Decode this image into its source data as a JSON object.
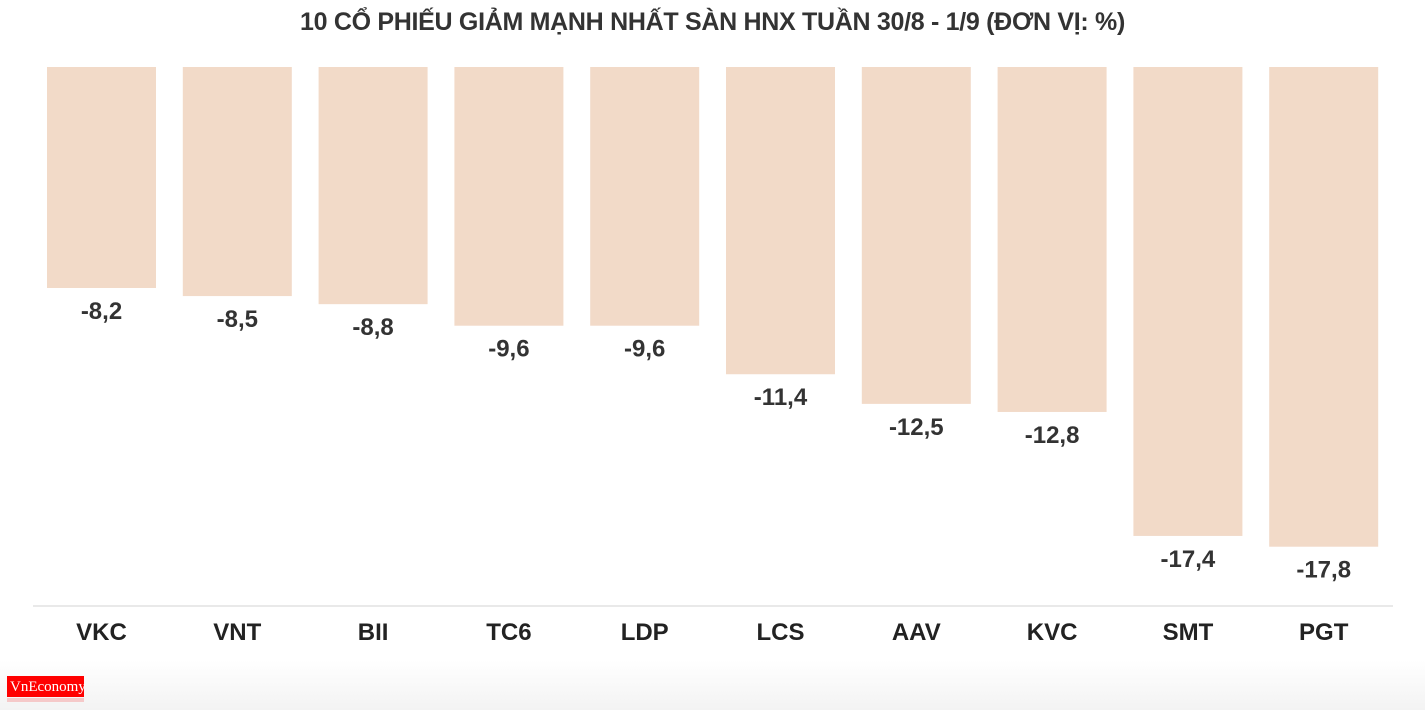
{
  "chart_data": {
    "type": "bar",
    "title": "10 CỔ PHIẾU GIẢM MẠNH NHẤT SÀN HNX TUẦN 30/8 - 1/9 (ĐƠN VỊ: %)",
    "categories": [
      "VKC",
      "VNT",
      "BII",
      "TC6",
      "LDP",
      "LCS",
      "AAV",
      "KVC",
      "SMT",
      "PGT"
    ],
    "values": [
      -8.2,
      -8.5,
      -8.8,
      -9.6,
      -9.6,
      -11.4,
      -12.5,
      -12.8,
      -17.4,
      -17.8
    ],
    "value_labels": [
      "-8,2",
      "-8,5",
      "-8,8",
      "-9,6",
      "-9,6",
      "-11,4",
      "-12,5",
      "-12,8",
      "-17,4",
      "-17,8"
    ],
    "xlabel": "",
    "ylabel": "",
    "ylim": [
      -20,
      0
    ],
    "grid": false,
    "bar_color": "#f2dac8",
    "label_color": "#333333"
  },
  "brand": {
    "logo": "VnEconomy",
    "logo_color": "#ff0000"
  }
}
